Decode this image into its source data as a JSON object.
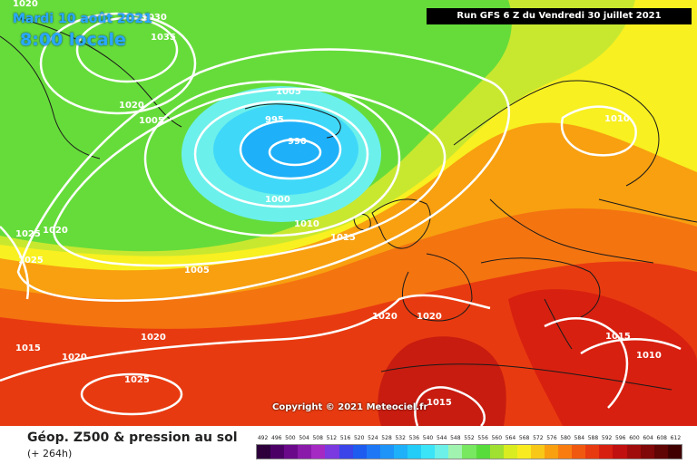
{
  "header": {
    "date": "Mardi 10 août 2021",
    "time": "8:00 locale",
    "run": "Run GFS 6 Z du Vendredi 30 juillet 2021"
  },
  "footer": {
    "title": "Géop. Z500 & pression au sol",
    "step": "(+ 264h)",
    "copyright": "Copyright © 2021 Meteociel.fr"
  },
  "legend": {
    "values": [
      "492",
      "496",
      "500",
      "504",
      "508",
      "512",
      "516",
      "520",
      "524",
      "528",
      "532",
      "536",
      "540",
      "544",
      "548",
      "552",
      "556",
      "560",
      "564",
      "568",
      "572",
      "576",
      "580",
      "584",
      "588",
      "592",
      "596",
      "600",
      "604",
      "608",
      "612"
    ],
    "colors": [
      "#2d003c",
      "#4b0066",
      "#6a0a8a",
      "#8a1aaa",
      "#a52ac4",
      "#7a3ae0",
      "#3a44e8",
      "#1e5cf0",
      "#1e78f5",
      "#1e94f8",
      "#1eb0f8",
      "#24ccf8",
      "#3ce4f8",
      "#6cf0e8",
      "#a0f4b0",
      "#78e860",
      "#58dc3c",
      "#a0e030",
      "#d8ec20",
      "#f8ec20",
      "#f8c818",
      "#f8a010",
      "#f87c10",
      "#f05810",
      "#e83a10",
      "#d82010",
      "#c01010",
      "#a00c0c",
      "#800808",
      "#600404",
      "#400000"
    ]
  },
  "map_colors": {
    "cyan": "#40d8f8",
    "light_cyan": "#6cf0ec",
    "green": "#66dc3a",
    "yellow_green": "#c8e830",
    "yellow": "#f8f020",
    "orange": "#f8a010",
    "dark_orange": "#f47410",
    "red": "#e83a10",
    "dark_red": "#c81c10",
    "isobar": "#ffffff",
    "border": "#1a1a1a"
  },
  "isobar_labels": [
    "1030",
    "1035",
    "1020",
    "1005",
    "995",
    "990",
    "1005",
    "1000",
    "1010",
    "1015",
    "1025",
    "1020",
    "1025",
    "1005",
    "1020",
    "1020",
    "1015",
    "1020",
    "1020",
    "1025",
    "1015",
    "1010",
    "1010",
    "1015",
    "1020"
  ]
}
